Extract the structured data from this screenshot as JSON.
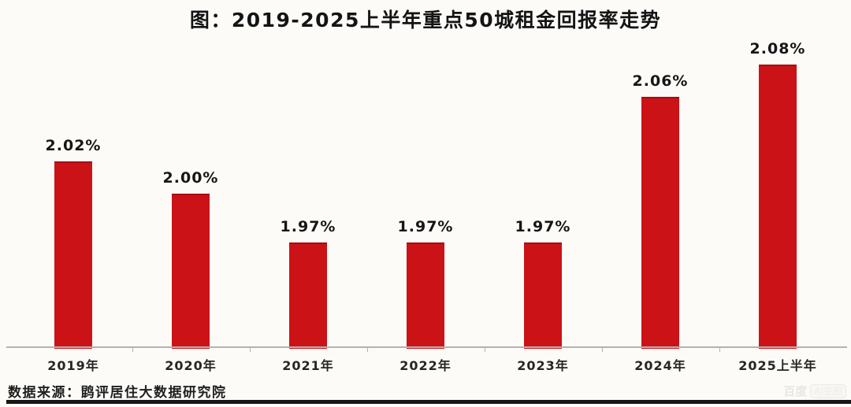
{
  "page": {
    "background_color": "#fcfbf8",
    "accent_red": "#cb1216"
  },
  "chart_data": {
    "type": "bar",
    "title": "图：2019-2025上半年重点50城租金回报率走势",
    "categories": [
      "2019年",
      "2020年",
      "2021年",
      "2022年",
      "2023年",
      "2024年",
      "2025上半年"
    ],
    "values": [
      2.02,
      2.0,
      1.97,
      1.97,
      1.97,
      2.06,
      2.08
    ],
    "value_labels": [
      "2.02%",
      "2.00%",
      "1.97%",
      "1.97%",
      "1.97%",
      "2.06%",
      "2.08%"
    ],
    "xlabel": "",
    "ylabel": "",
    "unit": "%",
    "ylim": [
      1.905,
      2.115
    ],
    "grid": false,
    "legend": "none",
    "bar_color": "#cb1216",
    "label_color": "#161616",
    "axis_color": "#b5b2ae"
  },
  "footer": {
    "source_label": "数据来源：鹍评居住大数据研究院"
  },
  "watermark": {
    "brand": "百度",
    "badge": "AI生图"
  }
}
